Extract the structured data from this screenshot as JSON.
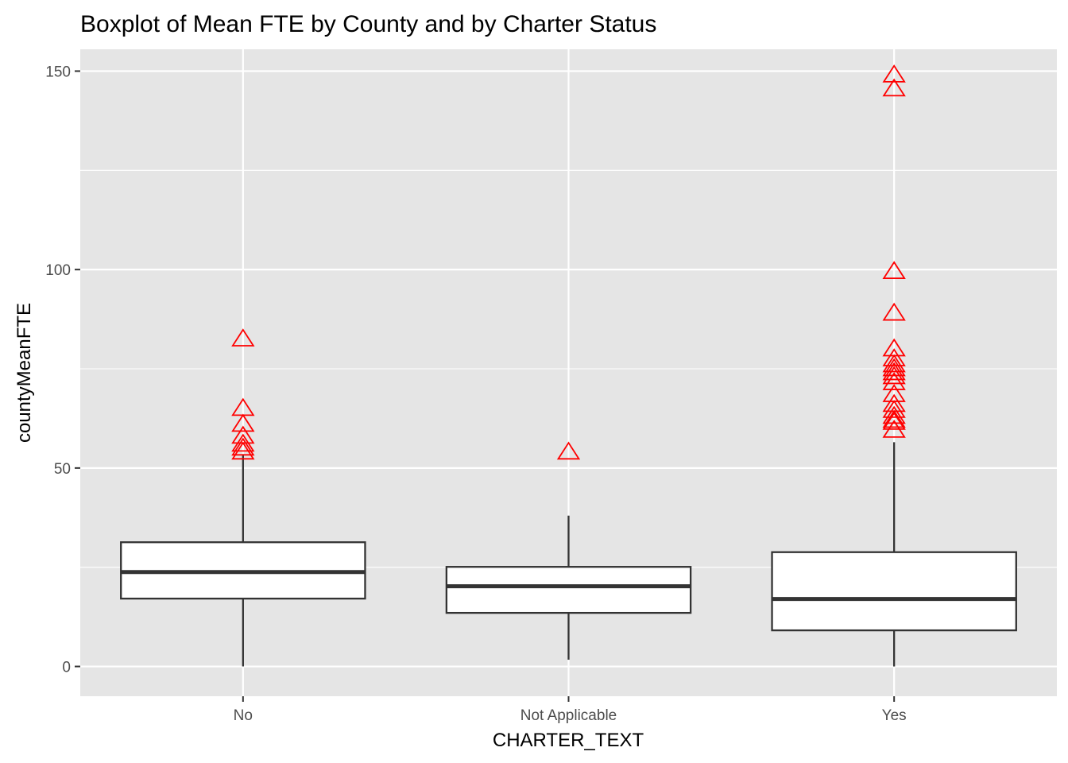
{
  "chart_data": {
    "type": "boxplot",
    "title": "Boxplot of Mean FTE by County and by Charter Status",
    "xlabel": "CHARTER_TEXT",
    "ylabel": "countyMeanFTE",
    "categories": [
      "No",
      "Not Applicable",
      "Yes"
    ],
    "ylim": [
      -7.5,
      155.5
    ],
    "yticks": [
      0,
      50,
      100,
      150
    ],
    "y_minor_ticks": [
      25,
      75,
      125
    ],
    "grid": true,
    "legend": "none",
    "colors": {
      "panel_bg": "#e5e5e5",
      "grid": "#ffffff",
      "box_fill": "#ffffff",
      "box_stroke": "#333333",
      "outlier": "#ff0000",
      "tick": "#333333"
    },
    "boxes": [
      {
        "category": "No",
        "whisker_low": 0,
        "q1": 17.1,
        "median": 23.8,
        "q3": 31.3,
        "whisker_high": 53.5,
        "outliers": [
          82.5,
          65.0,
          61.0,
          58.0,
          56.0,
          55.0,
          54.0
        ]
      },
      {
        "category": "Not Applicable",
        "whisker_low": 1.7,
        "q1": 13.5,
        "median": 20.2,
        "q3": 25.1,
        "whisker_high": 38.0,
        "outliers": [
          54.0
        ]
      },
      {
        "category": "Yes",
        "whisker_low": 0,
        "q1": 9.1,
        "median": 17.0,
        "q3": 28.8,
        "whisker_high": 56.5,
        "outliers": [
          149.0,
          145.5,
          99.5,
          89.0,
          80.0,
          77.5,
          76.0,
          75.0,
          74.0,
          73.0,
          71.5,
          68.5,
          66.0,
          64.5,
          63.0,
          62.0,
          61.5,
          59.5
        ]
      }
    ]
  }
}
